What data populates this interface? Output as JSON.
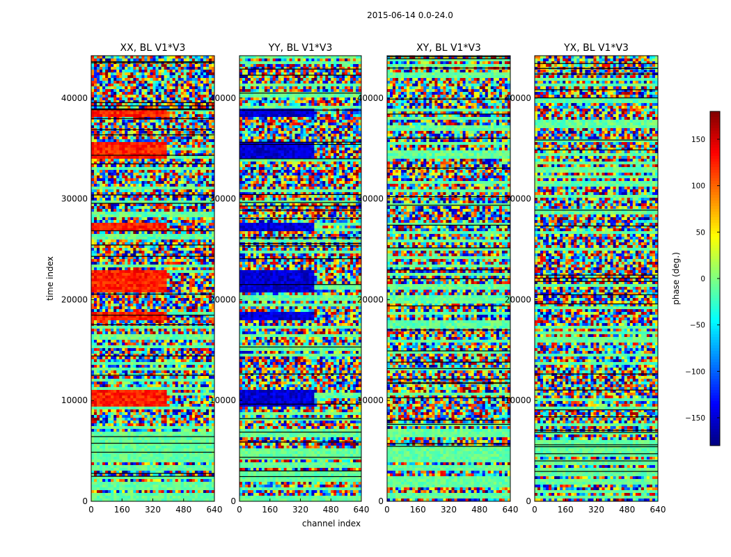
{
  "suptitle": "2015-06-14 0.0-24.0",
  "chart_data": {
    "type": "heatmap",
    "panels": [
      {
        "title": "XX, BL V1*V3",
        "strong_phase": 125
      },
      {
        "title": "YY, BL V1*V3",
        "strong_phase": -150
      },
      {
        "title": "XY, BL V1*V3",
        "strong_phase": null
      },
      {
        "title": "YX, BL V1*V3",
        "strong_phase": null
      }
    ],
    "xlabel": "channel index",
    "ylabel": "time index",
    "x_ticks": [
      0,
      160,
      320,
      480,
      640
    ],
    "y_ticks": [
      0,
      10000,
      20000,
      30000,
      40000
    ],
    "xlim": [
      0,
      640
    ],
    "ylim": [
      0,
      44200
    ],
    "colorbar": {
      "label": "phase (deg.)",
      "ticks": [
        150,
        100,
        50,
        0,
        -50,
        -100,
        -150
      ],
      "range": [
        -180,
        180
      ],
      "colormap": "jet"
    },
    "coherent_time_bands": [
      [
        9500,
        11000
      ],
      [
        18000,
        18700
      ],
      [
        20800,
        22900
      ],
      [
        26900,
        27600
      ],
      [
        33900,
        35500
      ],
      [
        38200,
        38900
      ]
    ],
    "notes_colors": {
      "jet_low": "#00007f",
      "jet_mid": "#7fff7f",
      "jet_high": "#7f0000"
    }
  }
}
